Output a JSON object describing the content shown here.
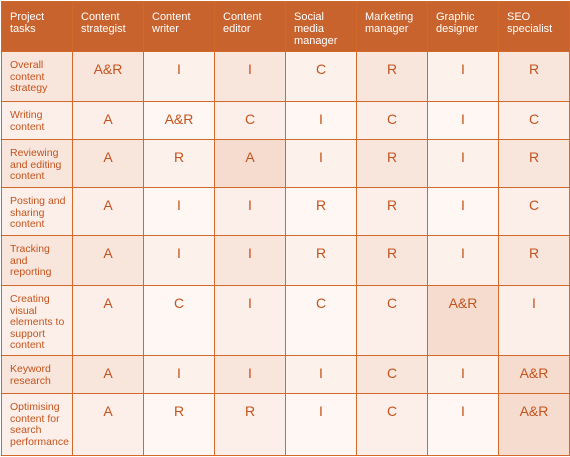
{
  "headers": [
    "Project tasks",
    "Content strategist",
    "Content writer",
    "Content editor",
    "Social media manager",
    "Marketing manager",
    "Graphic designer",
    "SEO specialist"
  ],
  "rows": [
    {
      "task": "Overall content strategy",
      "values": [
        "A&R",
        "I",
        "I",
        "C",
        "R",
        "I",
        "R"
      ]
    },
    {
      "task": "Writing content",
      "values": [
        "A",
        "A&R",
        "C",
        "I",
        "C",
        "I",
        "C"
      ]
    },
    {
      "task": "Reviewing and editing content",
      "values": [
        "A",
        "R",
        "A",
        "I",
        "R",
        "I",
        "R"
      ]
    },
    {
      "task": "Posting and sharing content",
      "values": [
        "A",
        "I",
        "I",
        "R",
        "R",
        "I",
        "C"
      ]
    },
    {
      "task": "Tracking and reporting",
      "values": [
        "A",
        "I",
        "I",
        "R",
        "R",
        "I",
        "R"
      ]
    },
    {
      "task": "Creating visual elements to support content",
      "values": [
        "A",
        "C",
        "I",
        "C",
        "C",
        "A&R",
        "I"
      ]
    },
    {
      "task": "Keyword research",
      "values": [
        "A",
        "I",
        "I",
        "I",
        "C",
        "I",
        "A&R"
      ]
    },
    {
      "task": "Optimising content for search performance",
      "values": [
        "A",
        "R",
        "R",
        "I",
        "C",
        "I",
        "A&R"
      ]
    }
  ],
  "colors": {
    "header_bg": "#c8632e",
    "text": "#c3541d",
    "border": "#d2692a"
  }
}
